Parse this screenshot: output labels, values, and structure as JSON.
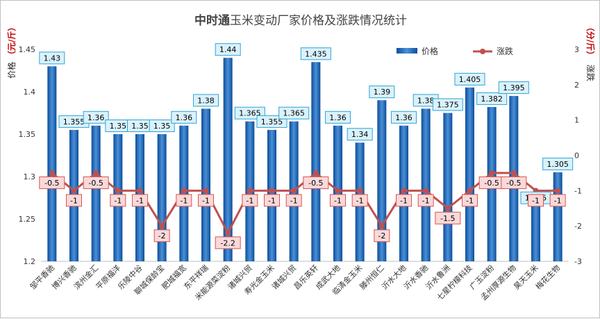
{
  "chart_data": {
    "type": "bar+line",
    "title_parts": [
      "中时通",
      "玉米变动厂家价格及涨跌情况统计"
    ],
    "ylabel_left": [
      "价格",
      "（元/斤）"
    ],
    "ylabel_right": [
      "涨跌",
      "（分/斤）"
    ],
    "ylim_left": [
      1.2,
      1.45
    ],
    "yticks_left": [
      "1.2",
      "1.25",
      "1.3",
      "1.35",
      "1.4",
      "1.45"
    ],
    "ylim_right": [
      -3,
      3
    ],
    "yticks_right": [
      "-3",
      "-2",
      "-1",
      "0",
      "1",
      "2",
      "3"
    ],
    "legend_position": "top-right",
    "categories": [
      "邹平香驰",
      "博兴香驰",
      "滨州金汇",
      "平原福洋",
      "乐陵中谷",
      "聊城保龄宝",
      "肥城福宽",
      "东平祥瑞",
      "米能源菜淀粉",
      "诸城兴贸",
      "寿光金玉米",
      "诸城兴贸",
      "昌乐英轩",
      "成武大地",
      "临清金玉米",
      "滕州恒仁",
      "沂水大地",
      "沂水香驰",
      "沂水鲁洲",
      "七星柠檬科技",
      "广玉淀粉",
      "孟州厚源生物",
      "昊天玉米",
      "梅花生物"
    ],
    "series": [
      {
        "name": "价格",
        "kind": "bar",
        "values": [
          1.43,
          1.355,
          1.36,
          1.35,
          1.35,
          1.35,
          1.36,
          1.38,
          1.44,
          1.365,
          1.355,
          1.365,
          1.435,
          1.36,
          1.34,
          1.39,
          1.36,
          1.38,
          1.375,
          1.405,
          1.382,
          1.395,
          1.265,
          1.305
        ],
        "labels": [
          "1.43",
          "1.355",
          "1.36",
          "1.35",
          "1.35",
          "1.35",
          "1.36",
          "1.38",
          "1.44",
          "1.365",
          "1.355",
          "1.365",
          "1.435",
          "1.36",
          "1.34",
          "1.39",
          "1.36",
          "1.38",
          "1.375",
          "1.405",
          "1.382",
          "1.395",
          "1.265",
          "1.305"
        ]
      },
      {
        "name": "涨跌",
        "kind": "line",
        "values": [
          -0.5,
          -1,
          -0.5,
          -1,
          -1,
          -2,
          -1,
          -1,
          -2.2,
          -1,
          -1,
          -1,
          -0.5,
          -1,
          -1,
          -2,
          -1,
          -1,
          -1.5,
          -1,
          -0.5,
          -0.5,
          -1,
          -1
        ],
        "labels": [
          "-0.5",
          "-1",
          "-0.5",
          "-1",
          "-1",
          "-2",
          "-1",
          "-1",
          "-2.2",
          "-1",
          "-1",
          "-1",
          "-0.5",
          "-1",
          "-1",
          "-2",
          "-1",
          "-1",
          "-1.5",
          "-1",
          "-0.5",
          "-0.5",
          "-1",
          "-1"
        ]
      }
    ]
  },
  "colors": {
    "bar_dark": "#0a4f9c",
    "bar_light": "#4d8fd6",
    "line": "#c0504d",
    "price_label_bg": "#d9f2fb",
    "price_label_border": "#31a2d6",
    "chg_label_bg": "#f9d9d9",
    "chg_label_border": "#d9534f",
    "title_brand": "#444444"
  }
}
